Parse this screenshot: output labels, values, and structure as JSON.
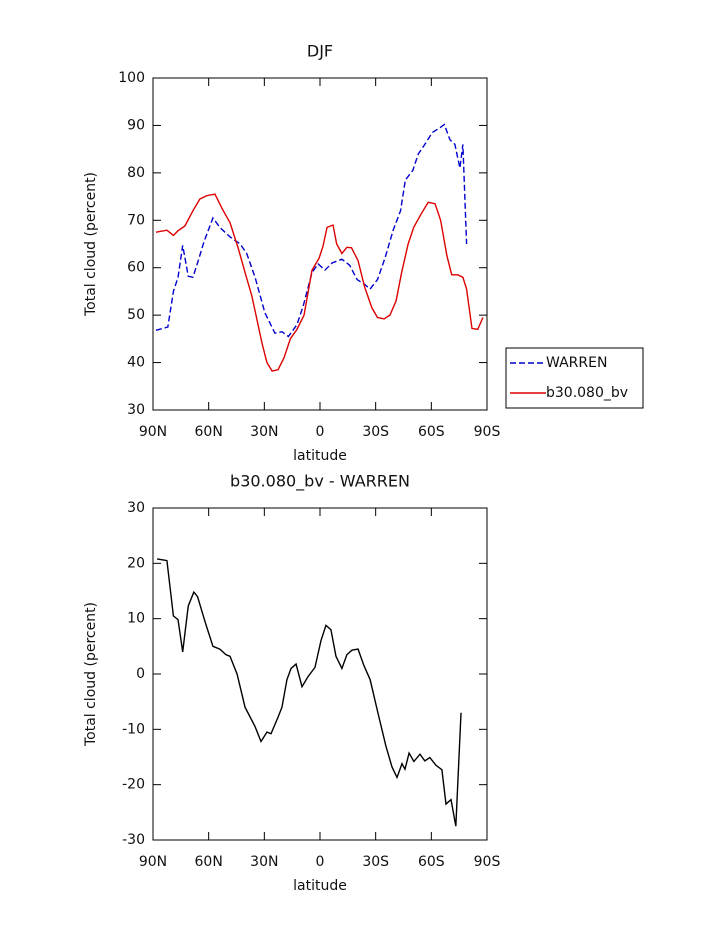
{
  "chart_data": [
    {
      "type": "line",
      "title": "DJF",
      "xlabel": "latitude",
      "ylabel": "Total cloud (percent)",
      "xlim": [
        90,
        -90
      ],
      "xticks": [
        {
          "value": 90,
          "label": "90N"
        },
        {
          "value": 60,
          "label": "60N"
        },
        {
          "value": 30,
          "label": "30N"
        },
        0,
        {
          "value": -30,
          "label": "30S"
        },
        {
          "value": -60,
          "label": "60S"
        },
        {
          "value": -90,
          "label": "90S"
        }
      ],
      "ylim": [
        30,
        100
      ],
      "yticks": [
        30,
        40,
        50,
        60,
        70,
        80,
        90,
        100
      ],
      "legend": "right",
      "series": [
        {
          "name": "WARREN",
          "color": "#0000cc",
          "linestyle": "dashed",
          "x": [
            88.4,
            82,
            79,
            76.5,
            74,
            71,
            68.5,
            66,
            62.5,
            57.7,
            54,
            48.5,
            43,
            39.5,
            35,
            29.7,
            24.3,
            20.5,
            17,
            12.4,
            9,
            4.3,
            1,
            -2.7,
            -6.5,
            -11.8,
            -16,
            -20,
            -24,
            -27,
            -31,
            -35,
            -39.5,
            -43.4,
            -46,
            -50,
            -53,
            -56.5,
            -60.5,
            -64.6,
            -67,
            -70,
            -72.7,
            -75.4,
            -77,
            -79
          ],
          "values": [
            46.8,
            47.5,
            55,
            58,
            64.7,
            58.2,
            58,
            61,
            65.5,
            70.5,
            68.5,
            66.5,
            65,
            63,
            58,
            50.5,
            46.2,
            46.5,
            45.5,
            48,
            52,
            59,
            60.8,
            59.5,
            61,
            61.8,
            60.5,
            57.5,
            56.5,
            55.5,
            57.5,
            62,
            68,
            72,
            78.5,
            80.5,
            84,
            86,
            88.5,
            89.5,
            90.2,
            87,
            86,
            81,
            86,
            65
          ]
        },
        {
          "name": "b30.080_bv",
          "color": "#dd0000",
          "linestyle": "solid",
          "x": [
            88.4,
            82.5,
            79,
            76.5,
            72.8,
            68.5,
            64.7,
            61,
            56.6,
            52.8,
            48.5,
            44,
            40.4,
            36.7,
            33.4,
            31.2,
            28.6,
            25.8,
            22.6,
            19.4,
            16,
            12.4,
            8.6,
            4.3,
            0.5,
            -1.6,
            -3.8,
            -7,
            -9,
            -11.8,
            -14.5,
            -17,
            -20.5,
            -24,
            -28,
            -31,
            -34.5,
            -37.7,
            -41,
            -44,
            -47.5,
            -50.5,
            -54,
            -58.3,
            -62,
            -65,
            -68.4,
            -71,
            -74.3,
            -77,
            -79,
            -81.9,
            -85,
            -87.8
          ],
          "values": [
            67.5,
            67.9,
            66.8,
            67.8,
            68.8,
            72,
            74.5,
            75.2,
            75.5,
            72.5,
            69.5,
            64,
            59,
            54,
            48,
            44,
            40,
            38.2,
            38.5,
            41,
            45,
            47,
            50,
            59.5,
            62,
            64.5,
            68.5,
            69,
            65,
            63,
            64.3,
            64.2,
            61.5,
            56,
            51.5,
            49.5,
            49.2,
            50,
            53,
            59,
            65,
            68.5,
            71,
            73.8,
            73.5,
            70,
            62.5,
            58.5,
            58.5,
            58,
            55.5,
            47.2,
            47,
            49.5
          ]
        }
      ]
    },
    {
      "type": "line",
      "title": "b30.080_bv - WARREN",
      "xlabel": "latitude",
      "ylabel": "Total cloud (percent)",
      "xlim": [
        90,
        -90
      ],
      "xticks": [
        {
          "value": 90,
          "label": "90N"
        },
        {
          "value": 60,
          "label": "60N"
        },
        {
          "value": 30,
          "label": "30N"
        },
        0,
        {
          "value": -30,
          "label": "30S"
        },
        {
          "value": -60,
          "label": "60S"
        },
        {
          "value": -90,
          "label": "90S"
        }
      ],
      "ylim": [
        -30,
        30
      ],
      "yticks": [
        -30,
        -20,
        -10,
        0,
        10,
        20,
        30
      ],
      "series": [
        {
          "color": "#000000",
          "linestyle": "solid",
          "x": [
            87.8,
            82.5,
            79,
            76.5,
            74,
            71,
            68,
            66,
            62,
            57.7,
            54,
            50.7,
            48.5,
            44.7,
            40.4,
            35,
            31.8,
            28.6,
            26.4,
            22.6,
            20.5,
            17.8,
            15.6,
            12.9,
            9.7,
            6.5,
            2.7,
            -0.5,
            -3.2,
            -5.9,
            -8.6,
            -11.8,
            -14.5,
            -17.2,
            -20.5,
            -23.7,
            -27,
            -31.2,
            -35.5,
            -38.8,
            -41.5,
            -44.2,
            -45.8,
            -48,
            -50.6,
            -53.9,
            -56.5,
            -59.2,
            -62.5,
            -65.7,
            -67.9,
            -70.6,
            -73.2,
            -76
          ],
          "values": [
            20.8,
            20.5,
            10.5,
            9.8,
            4,
            12.3,
            14.8,
            14,
            9.5,
            5,
            4.5,
            3.5,
            3.2,
            0,
            -6,
            -9.5,
            -12.2,
            -10.5,
            -10.8,
            -7.8,
            -6,
            -1,
            1,
            1.8,
            -2.3,
            -0.5,
            1.2,
            6,
            8.8,
            8,
            3.2,
            1,
            3.5,
            4.3,
            4.5,
            1.5,
            -1,
            -7,
            -13,
            -16.8,
            -18.7,
            -16.2,
            -17.2,
            -14.3,
            -15.8,
            -14.5,
            -15.7,
            -15.1,
            -16.5,
            -17.3,
            -23.5,
            -22.7,
            -27.5,
            -7
          ]
        }
      ]
    }
  ]
}
